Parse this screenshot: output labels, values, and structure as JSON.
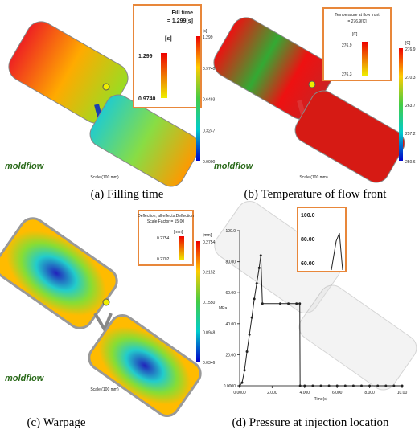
{
  "panels": [
    {
      "caption": "(a) Filling time",
      "logo": "moldflow",
      "scale": "Scale (100 mm)",
      "inset": {
        "title": "Fill time",
        "value": "= 1.299[s]",
        "unit": "[s]",
        "max": "1.299",
        "min": "0.9740"
      },
      "colorbar": {
        "unit": "[s]",
        "labels": [
          "1.299",
          "0.9740",
          "0.6493",
          "0.3247",
          "0.0000"
        ]
      }
    },
    {
      "caption": "(b) Temperature of flow front",
      "logo": "moldflow",
      "scale": "Scale (100 mm)",
      "inset": {
        "title": "Temperature at flow front",
        "value": "= 276.9[C]",
        "unit": "[C]",
        "max": "276.9",
        "min": "276.3"
      },
      "colorbar": {
        "unit": "[C]",
        "labels": [
          "276.9",
          "270.3",
          "263.7",
          "257.2",
          "250.6"
        ]
      }
    },
    {
      "caption": "(c) Warpage",
      "logo": "moldflow",
      "scale": "Scale (100 mm)",
      "inset": {
        "title": "Deflection, all effects:Deflection",
        "value": "Scale Factor = 15.00",
        "unit": "[mm]",
        "max": "0.2754",
        "min": "0.2702"
      },
      "colorbar": {
        "unit": "[mm]",
        "labels": [
          "0.2754",
          "0.2152",
          "0.1550",
          "0.0948",
          "0.0346"
        ]
      }
    },
    {
      "caption": "(d) Pressure at injection location",
      "inset": {
        "labels": [
          "100.0",
          "80.00",
          "60.00"
        ]
      },
      "chart_data": {
        "type": "line",
        "y_label": "MPa",
        "x_label": "Time(s)",
        "x": [
          0,
          0.15,
          0.3,
          0.45,
          0.6,
          0.75,
          0.9,
          1.05,
          1.2,
          1.3,
          1.4,
          2.5,
          3.0,
          3.5,
          3.7,
          3.72,
          4.0,
          4.5,
          5.0,
          5.5,
          6.0,
          6.5,
          7.0,
          7.5,
          8.0,
          8.5,
          9.0,
          9.5,
          10.0
        ],
        "series": [
          {
            "color": "#222222",
            "values": [
              0,
              2,
              10,
              22,
              33,
              44,
              56,
              66,
              76,
              84,
              53,
              53,
              53,
              53,
              53,
              0,
              0,
              0,
              0,
              0,
              0,
              0,
              0,
              0,
              0,
              0,
              0,
              0,
              0
            ]
          }
        ],
        "xlim": [
          0,
          10
        ],
        "ylim": [
          0,
          100
        ],
        "xticks": [
          {
            "value": 0,
            "label": "0.0000"
          },
          {
            "value": 2,
            "label": "2.000"
          },
          {
            "value": 4,
            "label": "4.000"
          },
          {
            "value": 6,
            "label": "6.000"
          },
          {
            "value": 8,
            "label": "8.000"
          },
          {
            "value": 10,
            "label": "10.00"
          }
        ],
        "yticks": [
          {
            "value": 0,
            "label": "0.0000"
          },
          {
            "value": 20,
            "label": "20.00"
          },
          {
            "value": 40,
            "label": "40.00"
          },
          {
            "value": 60,
            "label": "60.00"
          },
          {
            "value": 80,
            "label": "80.00"
          },
          {
            "value": 100,
            "label": "100.0"
          }
        ]
      }
    }
  ]
}
